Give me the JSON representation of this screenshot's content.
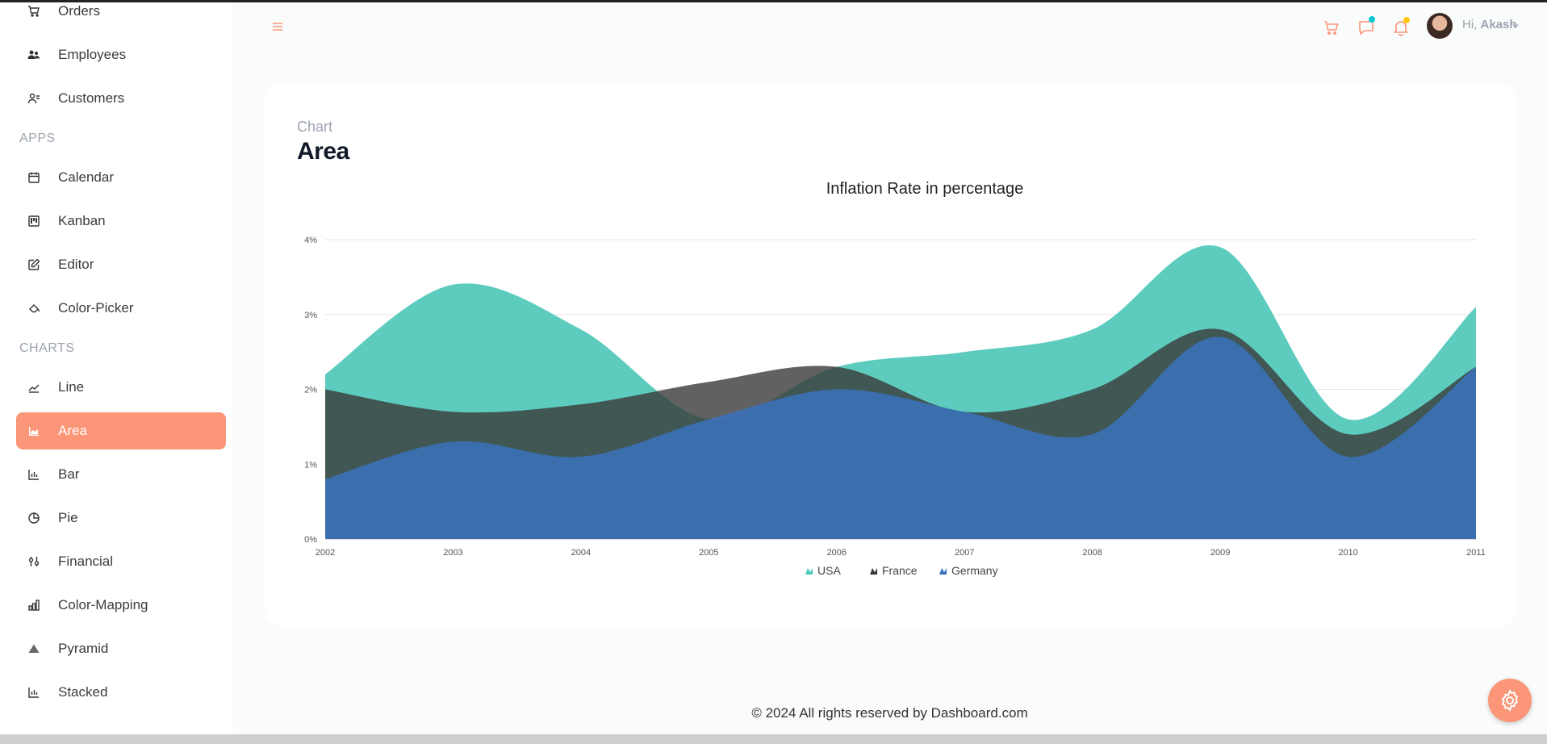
{
  "sidebar": {
    "items_top": [
      {
        "label": "Orders",
        "icon": "cart-icon"
      },
      {
        "label": "Employees",
        "icon": "employees-icon"
      },
      {
        "label": "Customers",
        "icon": "customers-icon"
      }
    ],
    "apps_heading": "APPS",
    "apps": [
      {
        "label": "Calendar",
        "icon": "calendar-icon"
      },
      {
        "label": "Kanban",
        "icon": "kanban-icon"
      },
      {
        "label": "Editor",
        "icon": "editor-icon"
      },
      {
        "label": "Color-Picker",
        "icon": "color-picker-icon"
      }
    ],
    "charts_heading": "CHARTS",
    "charts": [
      {
        "label": "Line",
        "icon": "line-chart-icon"
      },
      {
        "label": "Area",
        "icon": "area-chart-icon",
        "active": true
      },
      {
        "label": "Bar",
        "icon": "bar-chart-icon"
      },
      {
        "label": "Pie",
        "icon": "pie-chart-icon"
      },
      {
        "label": "Financial",
        "icon": "financial-icon"
      },
      {
        "label": "Color-Mapping",
        "icon": "color-mapping-icon"
      },
      {
        "label": "Pyramid",
        "icon": "pyramid-icon"
      },
      {
        "label": "Stacked",
        "icon": "stacked-icon"
      }
    ]
  },
  "navbar": {
    "greeting": "Hi,",
    "username": "Akash"
  },
  "page": {
    "category": "Chart",
    "title": "Area"
  },
  "footer": {
    "text": "© 2024 All rights reserved by Dashboard.com"
  },
  "colors": {
    "accent": "#fb9678",
    "usa": "#4bc7b8",
    "france": "#3a3a3a",
    "germany": "#3b72bd"
  },
  "chart_data": {
    "type": "area",
    "title": "Inflation Rate in percentage",
    "x": [
      "2002",
      "2003",
      "2004",
      "2005",
      "2006",
      "2007",
      "2008",
      "2009",
      "2010",
      "2011"
    ],
    "y_ticks": [
      "0%",
      "1%",
      "2%",
      "3%",
      "4%"
    ],
    "ylim": [
      0,
      4
    ],
    "series": [
      {
        "name": "USA",
        "values": [
          2.2,
          3.4,
          2.8,
          1.6,
          2.3,
          2.5,
          2.8,
          3.9,
          1.6,
          3.1
        ]
      },
      {
        "name": "France",
        "values": [
          2.0,
          1.7,
          1.8,
          2.1,
          2.3,
          1.7,
          2.0,
          2.8,
          1.4,
          2.3
        ]
      },
      {
        "name": "Germany",
        "values": [
          0.8,
          1.3,
          1.1,
          1.6,
          2.0,
          1.7,
          1.4,
          2.7,
          1.1,
          2.3
        ]
      }
    ],
    "grid": true,
    "legend_position": "bottom"
  }
}
